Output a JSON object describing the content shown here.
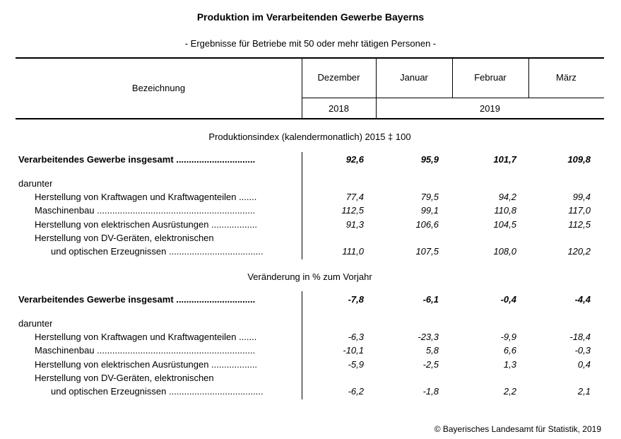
{
  "title": "Produktion im Verarbeitenden Gewerbe Bayerns",
  "subtitle": "- Ergebnisse für Betriebe mit 50 oder mehr tätigen Personen -",
  "header": {
    "bezeichnung": "Bezeichnung",
    "months": [
      "Dezember",
      "Januar",
      "Februar",
      "März"
    ],
    "year1": "2018",
    "year2": "2019"
  },
  "sections": [
    {
      "heading": "Produktionsindex (kalendermonatlich) 2015 ‡ 100",
      "total": {
        "label": "Verarbeitendes Gewerbe insgesamt ...............................",
        "values": [
          "92,6",
          "95,9",
          "101,7",
          "109,8"
        ]
      },
      "darunter": "darunter",
      "rows": [
        {
          "label": "Herstellung von Kraftwagen und Kraftwagenteilen .......",
          "values": [
            "77,4",
            "79,5",
            "94,2",
            "99,4"
          ]
        },
        {
          "label": "Maschinenbau ..............................................................",
          "values": [
            "112,5",
            "99,1",
            "110,8",
            "117,0"
          ]
        },
        {
          "label": "Herstellung von elektrischen Ausrüstungen ..................",
          "values": [
            "91,3",
            "106,6",
            "104,5",
            "112,5"
          ]
        },
        {
          "label": "Herstellung von DV-Geräten, elektronischen",
          "values": [
            "",
            "",
            "",
            ""
          ]
        },
        {
          "label": "und optischen Erzeugnissen .....................................",
          "values": [
            "111,0",
            "107,5",
            "108,0",
            "120,2"
          ]
        }
      ]
    },
    {
      "heading": "Veränderung in % zum Vorjahr",
      "total": {
        "label": "Verarbeitendes Gewerbe insgesamt ...............................",
        "values": [
          "-7,8",
          "-6,1",
          "-0,4",
          "-4,4"
        ]
      },
      "darunter": "darunter",
      "rows": [
        {
          "label": "Herstellung von Kraftwagen und Kraftwagenteilen .......",
          "values": [
            "-6,3",
            "-23,3",
            "-9,9",
            "-18,4"
          ]
        },
        {
          "label": "Maschinenbau ..............................................................",
          "values": [
            "-10,1",
            "5,8",
            "6,6",
            "-0,3"
          ]
        },
        {
          "label": "Herstellung von elektrischen Ausrüstungen ..................",
          "values": [
            "-5,9",
            "-2,5",
            "1,3",
            "0,4"
          ]
        },
        {
          "label": "Herstellung von DV-Geräten, elektronischen",
          "values": [
            "",
            "",
            "",
            ""
          ]
        },
        {
          "label": "und optischen Erzeugnissen .....................................",
          "values": [
            "-6,2",
            "-1,8",
            "2,2",
            "2,1"
          ]
        }
      ]
    }
  ],
  "footer": "© Bayerisches Landesamt für Statistik, 2019"
}
